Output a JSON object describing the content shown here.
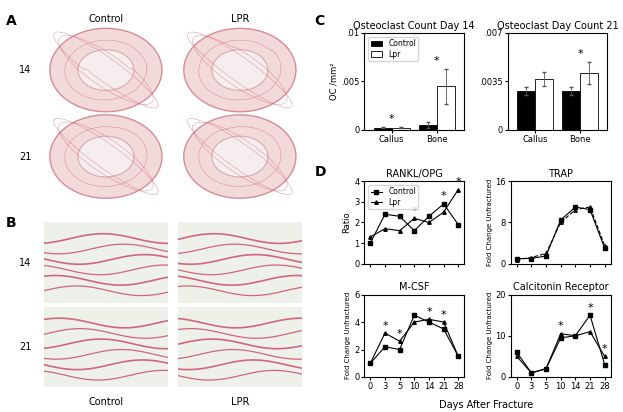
{
  "figure": {
    "panel_labels": [
      "A",
      "B",
      "C",
      "D"
    ],
    "x_label": "Days After Fracture"
  },
  "images": {
    "A": {
      "columns": [
        "Control",
        "LPR"
      ],
      "rows": [
        "14",
        "21"
      ]
    },
    "B": {
      "columns": [
        "Control",
        "LPR"
      ],
      "rows": [
        "14",
        "21"
      ]
    }
  },
  "chart_data": [
    {
      "type": "bar",
      "title": "Osteoclast Count Day 14",
      "y_label": "OC /mm²",
      "categories": [
        "Callus",
        "Bone"
      ],
      "series": [
        {
          "name": "Control",
          "color": "#000000",
          "values": [
            0.0002,
            0.0005
          ],
          "errors": [
            5e-05,
            0.0003
          ]
        },
        {
          "name": "Lpr",
          "color": "#ffffff",
          "values": [
            0.0002,
            0.0045
          ],
          "errors": [
            5e-05,
            0.0018
          ]
        }
      ],
      "ylim": [
        0,
        0.01
      ],
      "yticks": [
        0,
        {
          "value": 0.005,
          "label": ".005"
        },
        {
          "value": 0.01,
          "label": ".01"
        }
      ],
      "legend": "upper left",
      "annotations": [
        {
          "text": "*",
          "x": "Callus"
        },
        {
          "text": "*",
          "x": "Bone"
        }
      ]
    },
    {
      "type": "bar",
      "title": "Osteoclast Day Count 21",
      "categories": [
        "Callus",
        "Bone"
      ],
      "series": [
        {
          "color": "#000000",
          "values": [
            0.0028,
            0.0028
          ],
          "errors": [
            0.0003,
            0.0003
          ]
        },
        {
          "color": "#ffffff",
          "values": [
            0.0037,
            0.0041
          ],
          "errors": [
            0.0005,
            0.0008
          ]
        }
      ],
      "ylim": [
        0,
        0.007
      ],
      "yticks": [
        0,
        {
          "value": 0.0035,
          "label": ".0035"
        },
        {
          "value": 0.007,
          "label": ".007"
        }
      ],
      "annotations": [
        {
          "text": "*",
          "x": "Bone"
        }
      ]
    },
    {
      "type": "line",
      "title": "RANKL/OPG",
      "y_label": "Ratio",
      "categories": [
        "0",
        "3",
        "5",
        "10",
        "14",
        "21",
        "28"
      ],
      "series": [
        {
          "name": "Control",
          "color": "#000000",
          "marker": "square",
          "line_style": "solid",
          "values": [
            1.0,
            2.4,
            2.3,
            1.6,
            2.3,
            2.9,
            1.9
          ]
        },
        {
          "name": "Lpr",
          "color": "#000000",
          "marker": "triangle",
          "line_style": "solid",
          "values": [
            1.3,
            1.7,
            1.6,
            2.2,
            2.0,
            2.5,
            3.6
          ]
        }
      ],
      "ylim": [
        0,
        4
      ],
      "yticks": [
        0,
        1,
        2,
        3,
        4
      ],
      "legend": "upper left",
      "tick_labels": "y",
      "annotations": [
        {
          "text": "*",
          "x": "10"
        },
        {
          "text": "*",
          "x": "21"
        },
        {
          "text": "*",
          "x": "28"
        }
      ]
    },
    {
      "type": "line",
      "title": "TRAP",
      "y_label": "Fold Change Unfractured",
      "categories": [
        "0",
        "3",
        "5",
        "10",
        "14",
        "21",
        "28"
      ],
      "series": [
        {
          "color": "#000000",
          "marker": "square",
          "line_style": "solid",
          "values": [
            1.0,
            1.0,
            1.5,
            8.5,
            11.0,
            10.5,
            3.0
          ]
        },
        {
          "color": "#000000",
          "marker": "triangle",
          "line_style": "dashed",
          "values": [
            0.8,
            1.2,
            2.0,
            8.0,
            10.5,
            11.0,
            3.5
          ]
        }
      ],
      "ylim": [
        0,
        16
      ],
      "yticks": [
        0,
        8,
        16
      ],
      "tick_labels": "y"
    },
    {
      "type": "line",
      "title": "M-CSF",
      "y_label": "Fold Change Unfractured",
      "categories": [
        "0",
        "3",
        "5",
        "10",
        "14",
        "21",
        "28"
      ],
      "series": [
        {
          "color": "#000000",
          "marker": "square",
          "line_style": "solid",
          "values": [
            1.0,
            2.2,
            2.0,
            4.5,
            4.0,
            3.5,
            1.5
          ]
        },
        {
          "color": "#000000",
          "marker": "triangle",
          "line_style": "solid",
          "values": [
            1.0,
            3.2,
            2.6,
            4.0,
            4.2,
            4.0,
            1.5
          ]
        }
      ],
      "ylim": [
        0,
        6
      ],
      "yticks": [
        0,
        2,
        4,
        6
      ],
      "annotations": [
        {
          "text": "*",
          "x": "3"
        },
        {
          "text": "*",
          "x": "5"
        },
        {
          "text": "*",
          "x": "14"
        },
        {
          "text": "*",
          "x": "21"
        }
      ]
    },
    {
      "type": "line",
      "title": "Calcitonin Receptor",
      "y_label": "Fold Change Unfractured",
      "categories": [
        "0",
        "3",
        "5",
        "10",
        "14",
        "21",
        "28"
      ],
      "series": [
        {
          "color": "#000000",
          "marker": "square",
          "line_style": "solid",
          "values": [
            6.0,
            1.0,
            2.0,
            9.5,
            10.0,
            15.0,
            3.0
          ]
        },
        {
          "color": "#000000",
          "marker": "triangle",
          "line_style": "solid",
          "values": [
            5.0,
            1.0,
            2.0,
            10.5,
            10.0,
            11.0,
            5.0
          ]
        }
      ],
      "ylim": [
        0,
        20
      ],
      "yticks": [
        0,
        10,
        20
      ],
      "annotations": [
        {
          "text": "*",
          "x": "10"
        },
        {
          "text": "*",
          "x": "21"
        },
        {
          "text": "*",
          "x": "28"
        }
      ]
    }
  ]
}
